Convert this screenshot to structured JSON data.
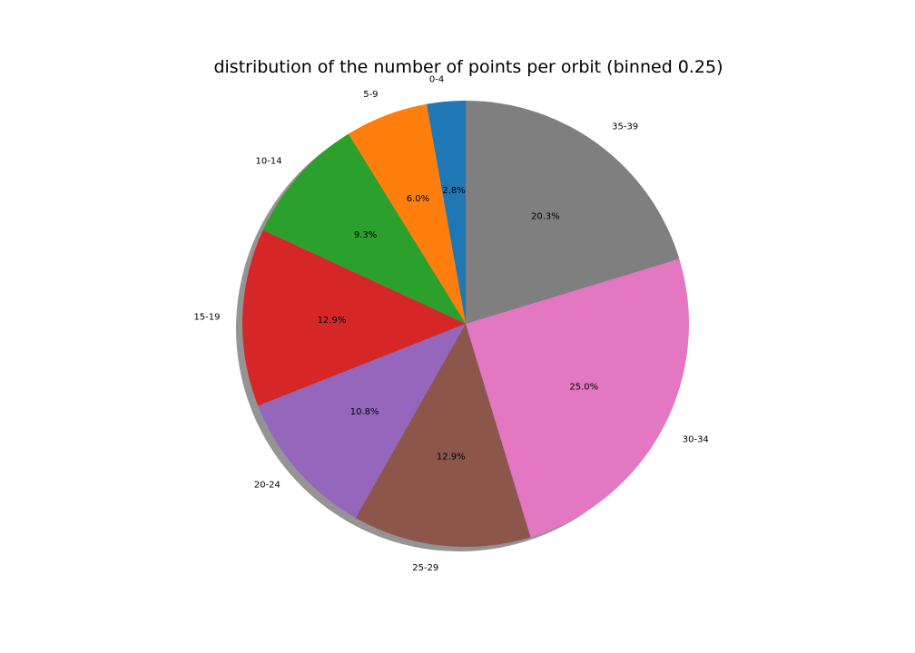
{
  "chart_data": {
    "type": "pie",
    "title": "distribution of the number of points per orbit (binned 0.25)",
    "categories": [
      "0-4",
      "5-9",
      "10-14",
      "15-19",
      "20-24",
      "25-29",
      "30-34",
      "35-39"
    ],
    "values": [
      2.8,
      6.0,
      9.3,
      12.9,
      10.8,
      12.9,
      25.0,
      20.3
    ],
    "value_labels": [
      "2.8%",
      "6.0%",
      "9.3%",
      "12.9%",
      "10.8%",
      "12.9%",
      "25.0%",
      "20.3%"
    ],
    "colors": [
      "#1f77b4",
      "#ff7f0e",
      "#2ca02c",
      "#d62728",
      "#9467bd",
      "#8c564b",
      "#e377c2",
      "#7f7f7f"
    ],
    "start_angle_deg": 90,
    "direction": "counterclockwise",
    "shadow": true,
    "legend": false
  }
}
